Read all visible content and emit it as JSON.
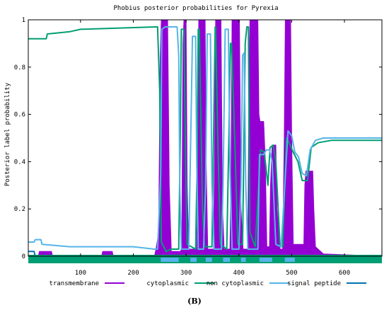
{
  "chart_data": {
    "type": "area",
    "title": "Phobius posterior probabilities for Pyrexia",
    "ylabel": "Posterior label probability",
    "xlabel": "",
    "xlim": [
      1,
      671
    ],
    "ylim": [
      0,
      1
    ],
    "xticks": [
      100,
      200,
      300,
      400,
      500,
      600
    ],
    "yticks": [
      0,
      0.2,
      0.4,
      0.6,
      0.8,
      1
    ],
    "ytick_labels": [
      "0",
      "0.2",
      "0.4",
      "0.6",
      "0.8",
      "1"
    ],
    "legend_position": "bottom",
    "series": [
      {
        "name": "transmembrane",
        "color": "#9400d3",
        "style": "filled-area",
        "points": [
          [
            1,
            0
          ],
          [
            20,
            0
          ],
          [
            22,
            0.02
          ],
          [
            45,
            0.02
          ],
          [
            47,
            0
          ],
          [
            140,
            0
          ],
          [
            142,
            0.02
          ],
          [
            160,
            0.02
          ],
          [
            162,
            0
          ],
          [
            240,
            0
          ],
          [
            243,
            0.03
          ],
          [
            248,
            0.1
          ],
          [
            251,
            0.85
          ],
          [
            253,
            1
          ],
          [
            265,
            1
          ],
          [
            268,
            0.3
          ],
          [
            272,
            0.02
          ],
          [
            290,
            0.02
          ],
          [
            292,
            0.1
          ],
          [
            294,
            0.9
          ],
          [
            296,
            1
          ],
          [
            300,
            1
          ],
          [
            302,
            0.3
          ],
          [
            305,
            0.03
          ],
          [
            320,
            0.03
          ],
          [
            322,
            0.3
          ],
          [
            324,
            1
          ],
          [
            336,
            1
          ],
          [
            338,
            0.4
          ],
          [
            341,
            0.03
          ],
          [
            352,
            0.03
          ],
          [
            354,
            0.4
          ],
          [
            356,
            1
          ],
          [
            366,
            1
          ],
          [
            369,
            0.2
          ],
          [
            372,
            0.03
          ],
          [
            383,
            0.03
          ],
          [
            385,
            0.3
          ],
          [
            387,
            1
          ],
          [
            401,
            1
          ],
          [
            404,
            0.2
          ],
          [
            408,
            0.03
          ],
          [
            417,
            0.03
          ],
          [
            419,
            0.7
          ],
          [
            421,
            1
          ],
          [
            436,
            1
          ],
          [
            438,
            0.6
          ],
          [
            440,
            0.57
          ],
          [
            447,
            0.57
          ],
          [
            450,
            0.4
          ],
          [
            453,
            0.04
          ],
          [
            458,
            0.04
          ],
          [
            460,
            0.3
          ],
          [
            463,
            0.47
          ],
          [
            470,
            0.47
          ],
          [
            472,
            0.2
          ],
          [
            478,
            0.03
          ],
          [
            483,
            0.03
          ],
          [
            486,
            0.5
          ],
          [
            488,
            1
          ],
          [
            498,
            1
          ],
          [
            500,
            0.5
          ],
          [
            503,
            0.05
          ],
          [
            523,
            0.05
          ],
          [
            525,
            0.3
          ],
          [
            527,
            0.36
          ],
          [
            540,
            0.36
          ],
          [
            542,
            0.2
          ],
          [
            545,
            0.04
          ],
          [
            560,
            0.01
          ],
          [
            671,
            0
          ]
        ]
      },
      {
        "name": "cytoplasmic",
        "color": "#009e73",
        "style": "line",
        "points": [
          [
            1,
            0.92
          ],
          [
            35,
            0.92
          ],
          [
            37,
            0.94
          ],
          [
            80,
            0.95
          ],
          [
            100,
            0.96
          ],
          [
            242,
            0.97
          ],
          [
            246,
            0.97
          ],
          [
            250,
            0.7
          ],
          [
            253,
            0.06
          ],
          [
            262,
            0.02
          ],
          [
            272,
            0.03
          ],
          [
            286,
            0.03
          ],
          [
            289,
            0.5
          ],
          [
            291,
            0.96
          ],
          [
            296,
            0.96
          ],
          [
            299,
            0.4
          ],
          [
            302,
            0.05
          ],
          [
            318,
            0.03
          ],
          [
            321,
            0.4
          ],
          [
            323,
            0.96
          ],
          [
            325,
            0.96
          ],
          [
            331,
            0.2
          ],
          [
            335,
            0.04
          ],
          [
            349,
            0.04
          ],
          [
            352,
            0.5
          ],
          [
            355,
            0.97
          ],
          [
            356,
            0.97
          ],
          [
            360,
            0.5
          ],
          [
            365,
            0.05
          ],
          [
            377,
            0.03
          ],
          [
            381,
            0.5
          ],
          [
            384,
            0.9
          ],
          [
            386,
            0.9
          ],
          [
            392,
            0.5
          ],
          [
            398,
            0.05
          ],
          [
            407,
            0.05
          ],
          [
            412,
            0.9
          ],
          [
            415,
            0.97
          ],
          [
            418,
            0.97
          ],
          [
            421,
            0.1
          ],
          [
            431,
            0.04
          ],
          [
            441,
            0.45
          ],
          [
            448,
            0.44
          ],
          [
            455,
            0.3
          ],
          [
            459,
            0.46
          ],
          [
            465,
            0.47
          ],
          [
            470,
            0.4
          ],
          [
            478,
            0.04
          ],
          [
            483,
            0.04
          ],
          [
            490,
            0.5
          ],
          [
            495,
            0.48
          ],
          [
            503,
            0.44
          ],
          [
            512,
            0.4
          ],
          [
            520,
            0.32
          ],
          [
            530,
            0.32
          ],
          [
            537,
            0.46
          ],
          [
            550,
            0.48
          ],
          [
            575,
            0.49
          ],
          [
            610,
            0.49
          ],
          [
            671,
            0.49
          ]
        ]
      },
      {
        "name": "non cytoplasmic",
        "color": "#56b4e9",
        "style": "line",
        "points": [
          [
            1,
            0.06
          ],
          [
            12,
            0.06
          ],
          [
            14,
            0.07
          ],
          [
            25,
            0.07
          ],
          [
            27,
            0.05
          ],
          [
            80,
            0.04
          ],
          [
            200,
            0.04
          ],
          [
            240,
            0.03
          ],
          [
            246,
            0.03
          ],
          [
            252,
            0.35
          ],
          [
            254,
            0.96
          ],
          [
            260,
            0.97
          ],
          [
            283,
            0.97
          ],
          [
            286,
            0.85
          ],
          [
            288,
            0.3
          ],
          [
            291,
            0.03
          ],
          [
            305,
            0.03
          ],
          [
            308,
            0.4
          ],
          [
            312,
            0.93
          ],
          [
            318,
            0.93
          ],
          [
            320,
            0.4
          ],
          [
            323,
            0.03
          ],
          [
            333,
            0.03
          ],
          [
            337,
            0.3
          ],
          [
            340,
            0.94
          ],
          [
            346,
            0.94
          ],
          [
            349,
            0.3
          ],
          [
            353,
            0.03
          ],
          [
            367,
            0.03
          ],
          [
            370,
            0.3
          ],
          [
            374,
            0.96
          ],
          [
            380,
            0.96
          ],
          [
            383,
            0.4
          ],
          [
            387,
            0.03
          ],
          [
            400,
            0.03
          ],
          [
            404,
            0.3
          ],
          [
            407,
            0.85
          ],
          [
            410,
            0.86
          ],
          [
            413,
            0.3
          ],
          [
            417,
            0.03
          ],
          [
            436,
            0.03
          ],
          [
            439,
            0.43
          ],
          [
            447,
            0.43
          ],
          [
            452,
            0.45
          ],
          [
            458,
            0.45
          ],
          [
            463,
            0.4
          ],
          [
            470,
            0.05
          ],
          [
            480,
            0.04
          ],
          [
            487,
            0.3
          ],
          [
            493,
            0.53
          ],
          [
            500,
            0.51
          ],
          [
            506,
            0.44
          ],
          [
            513,
            0.42
          ],
          [
            520,
            0.35
          ],
          [
            528,
            0.34
          ],
          [
            535,
            0.45
          ],
          [
            545,
            0.49
          ],
          [
            560,
            0.5
          ],
          [
            600,
            0.5
          ],
          [
            671,
            0.5
          ]
        ]
      },
      {
        "name": "signal peptide",
        "color": "#0072b2",
        "style": "line",
        "points": [
          [
            1,
            0.02
          ],
          [
            12,
            0.02
          ],
          [
            14,
            0
          ],
          [
            671,
            0
          ]
        ]
      }
    ]
  },
  "caption": "(B)"
}
